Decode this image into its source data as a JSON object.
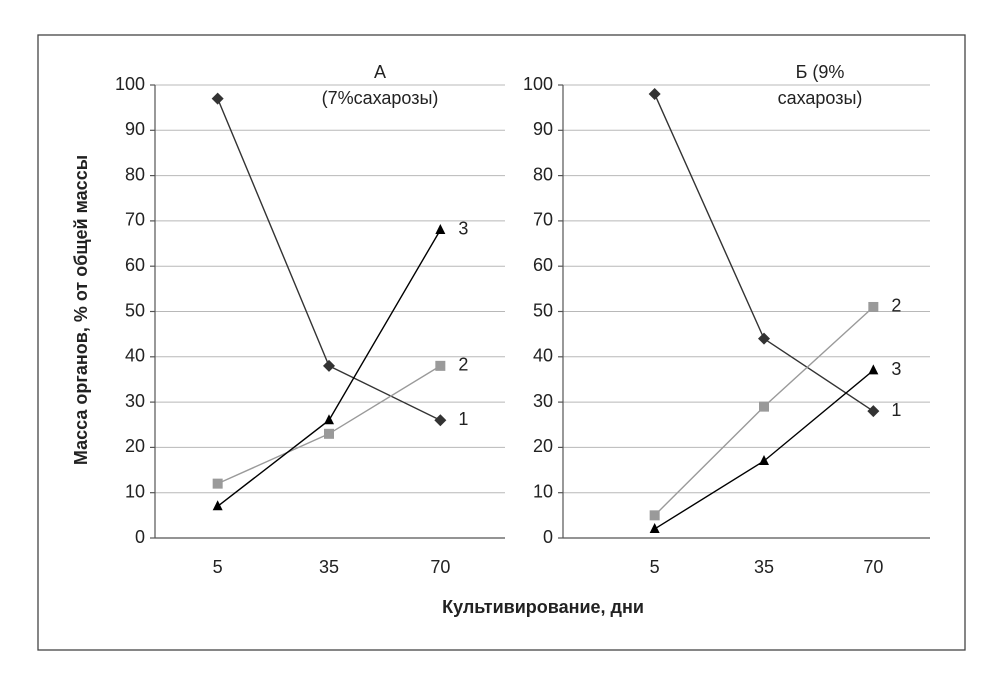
{
  "ylabel": "Масса органов, %  от общей массы",
  "xlabel": "Культивирование, дни",
  "chart_data": [
    {
      "type": "line",
      "title_lines": [
        "А",
        "(7%сахарозы)"
      ],
      "categories": [
        "5",
        "35",
        "70"
      ],
      "ylim": [
        0,
        100
      ],
      "yticks": [
        0,
        10,
        20,
        30,
        40,
        50,
        60,
        70,
        80,
        90,
        100
      ],
      "grid": true,
      "series": [
        {
          "name": "1",
          "color": "#333333",
          "marker": "diamond",
          "values": [
            97,
            38,
            26
          ]
        },
        {
          "name": "2",
          "color": "#9a9a9a",
          "marker": "square",
          "values": [
            12,
            23,
            38
          ]
        },
        {
          "name": "3",
          "color": "#000000",
          "marker": "triangle",
          "values": [
            7,
            26,
            68
          ]
        }
      ]
    },
    {
      "type": "line",
      "title_lines": [
        "Б (9%",
        "сахарозы)"
      ],
      "categories": [
        "5",
        "35",
        "70"
      ],
      "ylim": [
        0,
        100
      ],
      "yticks": [
        0,
        10,
        20,
        30,
        40,
        50,
        60,
        70,
        80,
        90,
        100
      ],
      "grid": true,
      "series": [
        {
          "name": "1",
          "color": "#333333",
          "marker": "diamond",
          "values": [
            98,
            44,
            28
          ]
        },
        {
          "name": "2",
          "color": "#9a9a9a",
          "marker": "square",
          "values": [
            5,
            29,
            51
          ]
        },
        {
          "name": "3",
          "color": "#000000",
          "marker": "triangle",
          "values": [
            2,
            17,
            37
          ]
        }
      ]
    }
  ]
}
